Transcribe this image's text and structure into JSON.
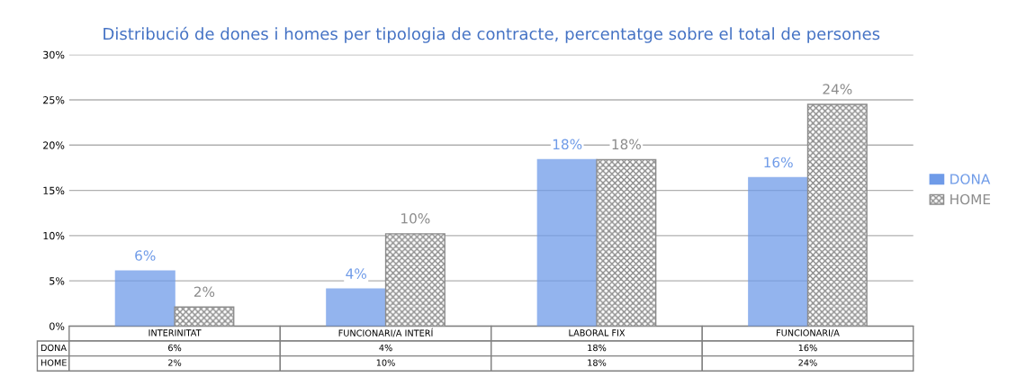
{
  "chart_data": {
    "type": "bar",
    "title": "Distribució de dones i homes per tipologia de contracte, percentatge sobre el total de persones",
    "categories": [
      "INTERINITAT",
      "FUNCIONARI/A INTERÍ",
      "LABORAL FIX",
      "FUNCIONARI/A"
    ],
    "series": [
      {
        "name": "DONA",
        "color": "#6f9be8",
        "values": [
          6.1,
          4.1,
          18.4,
          16.4
        ],
        "value_labels": [
          "6%",
          "4%",
          "18%",
          "16%"
        ]
      },
      {
        "name": "HOME",
        "color": "#8c8c8c",
        "values": [
          2.1,
          10.2,
          18.4,
          24.5
        ],
        "value_labels": [
          "2%",
          "10%",
          "18%",
          "24%"
        ]
      }
    ],
    "ylim": [
      0,
      30
    ],
    "yticks": [
      {
        "value": 0,
        "label": "0%"
      },
      {
        "value": 5,
        "label": "5%"
      },
      {
        "value": 10,
        "label": "10%"
      },
      {
        "value": 15,
        "label": "15%"
      },
      {
        "value": 20,
        "label": "20%"
      },
      {
        "value": 25,
        "label": "25%"
      },
      {
        "value": 30,
        "label": "30%"
      }
    ],
    "grid": "y",
    "legend": "right"
  }
}
